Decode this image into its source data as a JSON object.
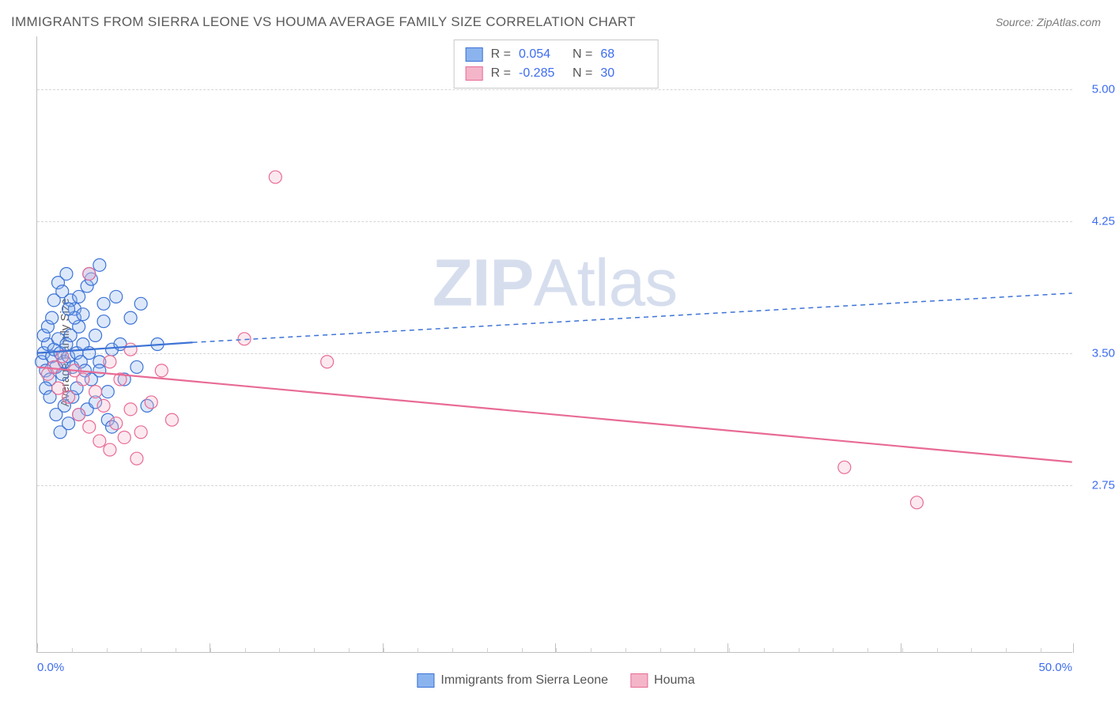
{
  "title": "IMMIGRANTS FROM SIERRA LEONE VS HOUMA AVERAGE FAMILY SIZE CORRELATION CHART",
  "source_label": "Source: ZipAtlas.com",
  "watermark_text_bold": "ZIP",
  "watermark_text_rest": "Atlas",
  "ylabel": "Average Family Size",
  "chart": {
    "type": "scatter-correlation",
    "background_color": "#ffffff",
    "grid_color": "#d5d5d5",
    "axis_color": "#c0c0c0",
    "tick_label_color": "#3d6cf0",
    "xlim": [
      0,
      50
    ],
    "ylim": [
      1.8,
      5.3
    ],
    "yticks": [
      2.75,
      3.5,
      4.25,
      5.0
    ],
    "ytick_labels": [
      "2.75",
      "3.50",
      "4.25",
      "5.00"
    ],
    "xlim_labels": {
      "min": "0.0%",
      "max": "50.0%"
    },
    "x_major_ticks": [
      0,
      8.33,
      16.67,
      25,
      33.33,
      41.67,
      50
    ],
    "x_minor_every": 1.67,
    "marker_radius": 8,
    "marker_stroke_width": 1.2,
    "fill_opacity": 0.3,
    "line_width": 2.2
  },
  "series1": {
    "name": "Immigrants from Sierra Leone",
    "fill_color": "#8bb4ee",
    "stroke_color": "#3d73d6",
    "line_color": "#3d73d6",
    "r": "0.054",
    "n": "68",
    "trend_start": [
      0,
      3.5
    ],
    "trend_solid_end": [
      7.5,
      3.56
    ],
    "trend_dash_end": [
      50,
      3.84
    ],
    "points": [
      [
        0.2,
        3.45
      ],
      [
        0.3,
        3.5
      ],
      [
        0.4,
        3.4
      ],
      [
        0.5,
        3.55
      ],
      [
        0.3,
        3.6
      ],
      [
        0.6,
        3.35
      ],
      [
        0.7,
        3.48
      ],
      [
        0.8,
        3.52
      ],
      [
        0.4,
        3.3
      ],
      [
        0.5,
        3.65
      ],
      [
        0.9,
        3.42
      ],
      [
        1.0,
        3.58
      ],
      [
        0.6,
        3.25
      ],
      [
        1.1,
        3.5
      ],
      [
        0.7,
        3.7
      ],
      [
        1.2,
        3.38
      ],
      [
        0.8,
        3.8
      ],
      [
        1.3,
        3.45
      ],
      [
        0.9,
        3.15
      ],
      [
        1.4,
        3.55
      ],
      [
        1.0,
        3.9
      ],
      [
        1.5,
        3.48
      ],
      [
        1.1,
        3.05
      ],
      [
        1.6,
        3.6
      ],
      [
        1.2,
        3.85
      ],
      [
        1.7,
        3.42
      ],
      [
        1.3,
        3.2
      ],
      [
        1.8,
        3.75
      ],
      [
        1.4,
        3.95
      ],
      [
        1.9,
        3.5
      ],
      [
        1.5,
        3.1
      ],
      [
        2.0,
        3.65
      ],
      [
        1.6,
        3.8
      ],
      [
        2.1,
        3.45
      ],
      [
        1.7,
        3.25
      ],
      [
        2.2,
        3.55
      ],
      [
        1.8,
        3.7
      ],
      [
        2.3,
        3.4
      ],
      [
        1.9,
        3.3
      ],
      [
        2.4,
        3.88
      ],
      [
        2.0,
        3.15
      ],
      [
        2.5,
        3.5
      ],
      [
        2.2,
        3.72
      ],
      [
        2.6,
        3.35
      ],
      [
        2.4,
        3.18
      ],
      [
        2.8,
        3.6
      ],
      [
        2.6,
        3.92
      ],
      [
        3.0,
        3.45
      ],
      [
        2.8,
        3.22
      ],
      [
        3.2,
        3.78
      ],
      [
        3.0,
        3.4
      ],
      [
        3.4,
        3.12
      ],
      [
        3.2,
        3.68
      ],
      [
        3.6,
        3.52
      ],
      [
        3.4,
        3.28
      ],
      [
        3.8,
        3.82
      ],
      [
        3.6,
        3.08
      ],
      [
        4.0,
        3.55
      ],
      [
        4.2,
        3.35
      ],
      [
        4.5,
        3.7
      ],
      [
        3.0,
        4.0
      ],
      [
        2.5,
        3.95
      ],
      [
        2.0,
        3.82
      ],
      [
        1.5,
        3.75
      ],
      [
        5.0,
        3.78
      ],
      [
        4.8,
        3.42
      ],
      [
        5.3,
        3.2
      ],
      [
        5.8,
        3.55
      ]
    ]
  },
  "series2": {
    "name": "Houma",
    "fill_color": "#f4b5c9",
    "stroke_color": "#e86b95",
    "line_color": "#e86b95",
    "r": "-0.285",
    "n": "30",
    "trend_start": [
      0,
      3.42
    ],
    "trend_end": [
      50,
      2.88
    ],
    "points": [
      [
        0.5,
        3.38
      ],
      [
        0.8,
        3.42
      ],
      [
        1.0,
        3.3
      ],
      [
        1.2,
        3.48
      ],
      [
        1.5,
        3.25
      ],
      [
        1.8,
        3.4
      ],
      [
        2.0,
        3.15
      ],
      [
        2.2,
        3.35
      ],
      [
        2.5,
        3.08
      ],
      [
        2.8,
        3.28
      ],
      [
        3.0,
        3.0
      ],
      [
        3.2,
        3.2
      ],
      [
        3.5,
        2.95
      ],
      [
        3.8,
        3.1
      ],
      [
        4.0,
        3.35
      ],
      [
        4.2,
        3.02
      ],
      [
        4.5,
        3.18
      ],
      [
        4.8,
        2.9
      ],
      [
        5.0,
        3.05
      ],
      [
        5.5,
        3.22
      ],
      [
        6.0,
        3.4
      ],
      [
        6.5,
        3.12
      ],
      [
        2.5,
        3.95
      ],
      [
        3.5,
        3.45
      ],
      [
        10.0,
        3.58
      ],
      [
        11.5,
        4.5
      ],
      [
        14.0,
        3.45
      ],
      [
        39.0,
        2.85
      ],
      [
        42.5,
        2.65
      ],
      [
        4.5,
        3.52
      ]
    ]
  },
  "legend_top": {
    "r_label": "R =",
    "n_label": "N ="
  }
}
